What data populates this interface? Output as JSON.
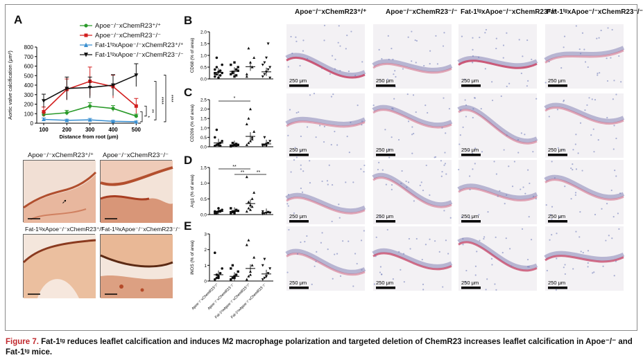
{
  "panels": {
    "a": "A",
    "b": "B",
    "c": "C",
    "d": "D",
    "e": "E"
  },
  "legend": [
    {
      "label": "Apoe⁻/⁻xChemR23⁺/⁺",
      "color": "#2a9a2a",
      "marker": "circle"
    },
    {
      "label": "Apoe⁻/⁻xChemR23⁻/⁻",
      "color": "#d21e1e",
      "marker": "square"
    },
    {
      "label": "Fat-1ᵗᵍxApoe⁻/⁻xChemR23⁺/⁺",
      "color": "#3a8fd0",
      "marker": "triangle"
    },
    {
      "label": "Fat-1ᵗᵍxApoe⁻/⁻xChemR23⁻/⁻",
      "color": "#111111",
      "marker": "triangle-down"
    }
  ],
  "chart_data": [
    {
      "type": "line",
      "panel": "A",
      "xlabel": "Distance from root (μm)",
      "ylabel": "Aortic valve calcification (μm²)",
      "x": [
        100,
        200,
        300,
        400,
        500
      ],
      "ylim": [
        0,
        800
      ],
      "yticks": [
        0,
        100,
        200,
        300,
        400,
        500,
        600,
        700,
        800
      ],
      "series": [
        {
          "name": "Apoe⁻/⁻xChemR23⁺/⁺",
          "color": "#2a9a2a",
          "values": [
            90,
            110,
            180,
            155,
            75
          ],
          "err": [
            20,
            25,
            35,
            30,
            20
          ]
        },
        {
          "name": "Apoe⁻/⁻xChemR23⁻/⁻",
          "color": "#d21e1e",
          "values": [
            120,
            355,
            440,
            385,
            180
          ],
          "err": [
            50,
            110,
            150,
            120,
            80
          ]
        },
        {
          "name": "Fat-1ᵗᵍxApoe⁻/⁻xChemR23⁺/⁺",
          "color": "#3a8fd0",
          "values": [
            40,
            30,
            35,
            20,
            15
          ],
          "err": [
            15,
            12,
            15,
            10,
            8
          ]
        },
        {
          "name": "Fat-1ᵗᵍxApoe⁻/⁻xChemR23⁻/⁻",
          "color": "#111111",
          "values": [
            235,
            365,
            375,
            400,
            505
          ],
          "err": [
            70,
            120,
            110,
            110,
            120
          ]
        }
      ],
      "significance": [
        "**",
        "****",
        "****",
        "*"
      ]
    },
    {
      "type": "scatter",
      "panel": "B",
      "ylabel": "CD68 (% of area)",
      "ylim": [
        0,
        2.0
      ],
      "yticks": [
        "0.0",
        "0.5",
        "1.0",
        "1.5",
        "2.0"
      ],
      "means": [
        0.28,
        0.32,
        0.52,
        0.3
      ],
      "sig": []
    },
    {
      "type": "scatter",
      "panel": "C",
      "ylabel": "CD206 (% of area)",
      "ylim": [
        0,
        2.5
      ],
      "yticks": [
        "0.0",
        "0.5",
        "1.0",
        "1.5",
        "2.0",
        "2.5"
      ],
      "means": [
        0.2,
        0.1,
        0.55,
        0.15
      ],
      "sig": [
        "*"
      ]
    },
    {
      "type": "scatter",
      "panel": "D",
      "ylabel": "Arg1 (% of area)",
      "ylim": [
        0,
        1.5
      ],
      "yticks": [
        "0.0",
        "0.5",
        "1.0",
        "1.5"
      ],
      "means": [
        0.1,
        0.1,
        0.35,
        0.06
      ],
      "sig": [
        "**",
        "**",
        "**"
      ]
    },
    {
      "type": "scatter",
      "panel": "E",
      "ylabel": "iNOS (% of area)",
      "ylim": [
        0,
        3
      ],
      "yticks": [
        "0",
        "1",
        "2",
        "3"
      ],
      "means": [
        0.4,
        0.3,
        0.8,
        0.45
      ],
      "sig": []
    }
  ],
  "x_categories": [
    "Apoe⁻/⁻xChemR23⁺/⁺",
    "Apoe⁻/⁻xChemR23⁻/⁻",
    "Fat-1ᵗᵍxApoe⁻/⁻xChemR23⁺/⁺",
    "Fat-1ᵗᵍxApoe⁻/⁻xChemR23⁻/⁻"
  ],
  "photo_labels": [
    "Apoe⁻/⁻xChemR23⁺/⁺",
    "Apoe⁻/⁻xChemR23⁻/⁻",
    "Fat-1ᵗᵍxApoe⁻/⁻xChemR23⁺/⁺",
    "Fat-1ᵗᵍxApoe⁻/⁻xChemR23⁻/⁻"
  ],
  "column_headers": [
    "Apoe⁻/⁻xChemR23⁺/⁺",
    "Apoe⁻/⁻xChemR23⁻/⁻",
    "Fat-1ᵗᵍxApoe⁻/⁻xChemR23⁺/⁺",
    "Fat-1ᵗᵍxApoe⁻/⁻xChemR23⁻/⁻"
  ],
  "scale_label": "250 μm",
  "caption": {
    "lead": "Figure 7.",
    "text": " Fat-1ᵗᵍ reduces leaflet calcification and induces M2 macrophage polarization and targeted deletion of ChemR23 increases leaflet calcification in Apoe⁻/⁻ and Fat-1ᵗᵍ mice."
  },
  "colors": {
    "accent": "#c0282d",
    "stain": "#c2345a",
    "hema": "#6b78b8"
  }
}
